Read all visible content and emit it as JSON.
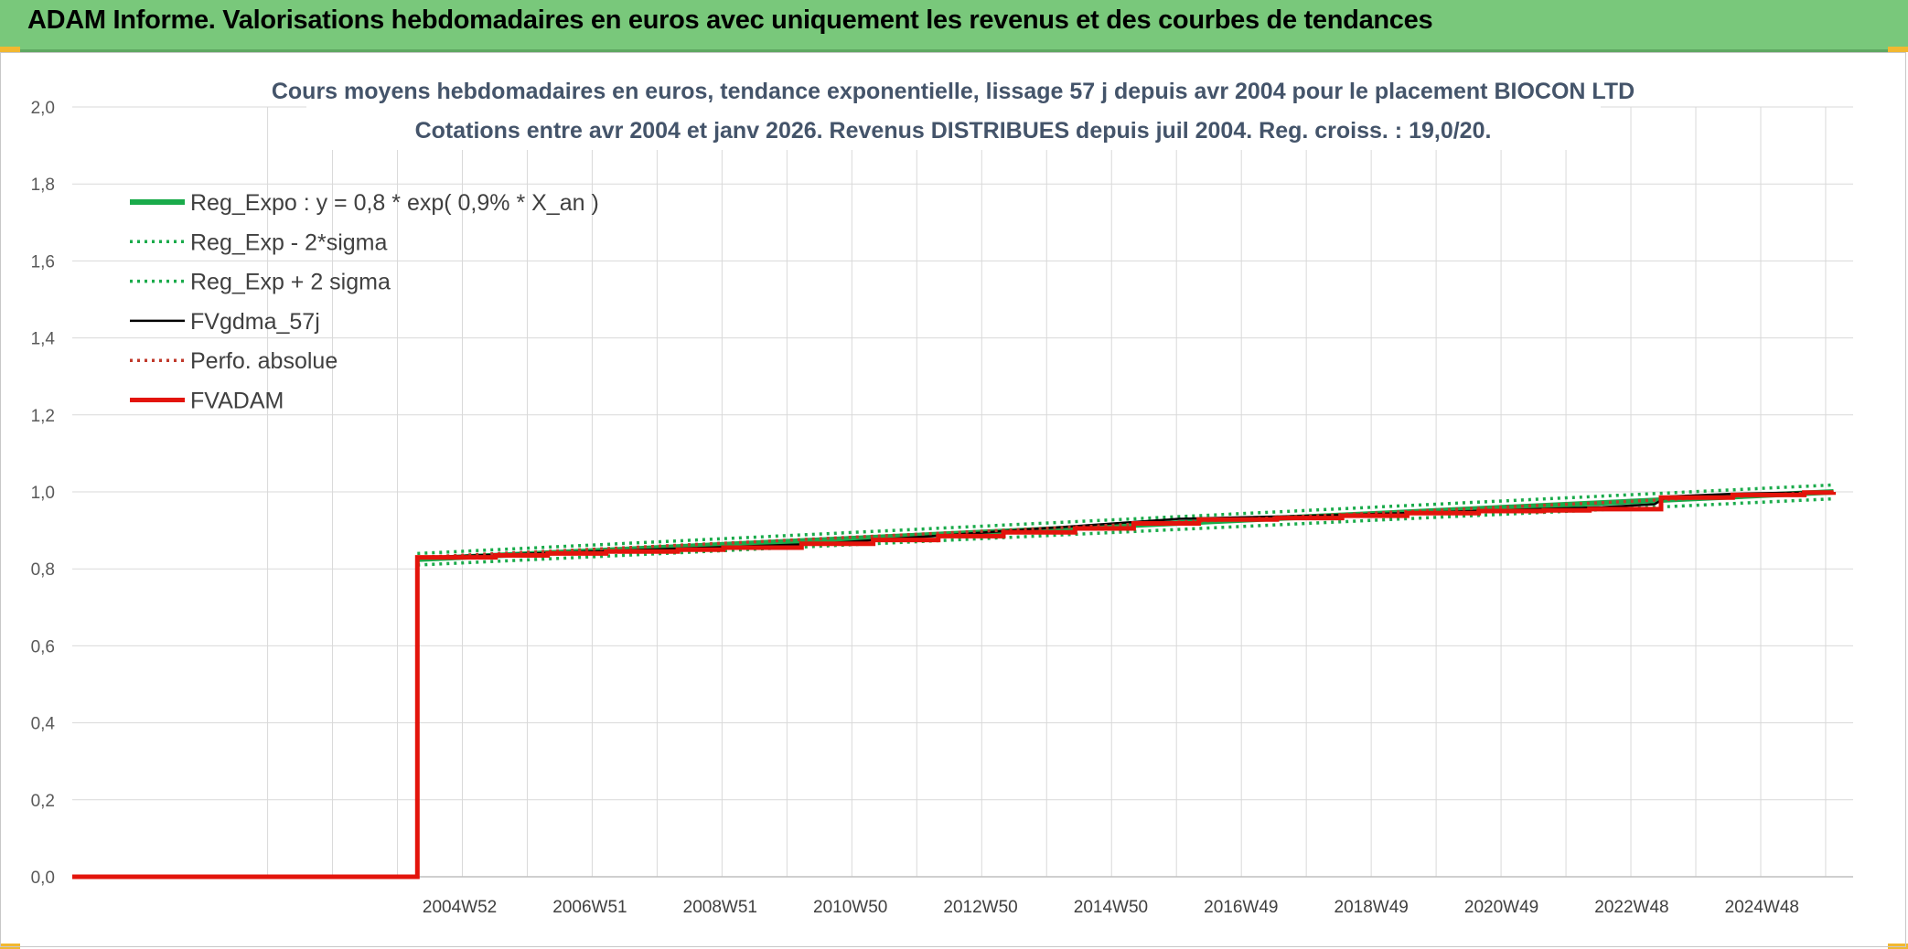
{
  "header": {
    "title": "ADAM Informe. Valorisations hebdomadaires en euros avec uniquement les revenus et des courbes de tendances"
  },
  "colors": {
    "banner": "#79c87b",
    "reg": "#1aab4b",
    "fvadam": "#e3140b",
    "fvgdma": "#000000",
    "perfo": "#c0392b",
    "grid": "#d9d9d9"
  },
  "chart_data": {
    "type": "line",
    "title": "Cours moyens hebdomadaires en euros, tendance exponentielle, lissage 57 j depuis avr 2004 pour le placement BIOCON LTD",
    "subtitle": "Cotations entre avr 2004 et janv 2026. Revenus DISTRIBUES depuis juil 2004. Reg. croiss. : 19,0/20.",
    "ylim": [
      0,
      2
    ],
    "ytick_labels": [
      "0,0",
      "0,2",
      "0,4",
      "0,6",
      "0,8",
      "1,0",
      "1,2",
      "1,4",
      "1,6",
      "1,8",
      "2,0"
    ],
    "xtick_labels": [
      "2004W52",
      "2006W51",
      "2008W51",
      "2010W50",
      "2012W50",
      "2014W50",
      "2016W49",
      "2018W49",
      "2020W49",
      "2022W48",
      "2024W48"
    ],
    "grid": true,
    "legend_position": "top-left",
    "series": [
      {
        "name": "Reg_Expo : y = 0,8 * exp( 0,9% *  X_an )",
        "style": "solid-thick",
        "color": "#1aab4b",
        "x": [
          2004.3,
          2026.05
        ],
        "y": [
          0.825,
          1.0
        ]
      },
      {
        "name": "Reg_Exp - 2*sigma",
        "style": "dotted",
        "color": "#1aab4b",
        "x": [
          2004.3,
          2026.05
        ],
        "y": [
          0.81,
          0.982
        ]
      },
      {
        "name": "Reg_Exp + 2 sigma",
        "style": "dotted",
        "color": "#1aab4b",
        "x": [
          2004.3,
          2026.05
        ],
        "y": [
          0.84,
          1.018
        ]
      },
      {
        "name": "FVgdma_57j",
        "style": "solid",
        "color": "#000000",
        "x": [
          2004.3,
          2010.5,
          2014.5,
          2016.0,
          2018.5,
          2020.5,
          2022.5,
          2023.3,
          2023.5,
          2024.5,
          2026.05
        ],
        "y": [
          0.83,
          0.865,
          0.912,
          0.93,
          0.94,
          0.95,
          0.96,
          0.968,
          0.988,
          0.995,
          1.0
        ]
      },
      {
        "name": "Perfo. absolue",
        "style": "dotted",
        "color": "#c0392b",
        "x": [
          2004.3,
          2026.05
        ],
        "y": [
          0.83,
          1.0
        ]
      },
      {
        "name": "FVADAM",
        "style": "step-thick",
        "color": "#e3140b",
        "x": [
          1999.0,
          2004.3,
          2005.5,
          2006.3,
          2007.2,
          2008.3,
          2009.0,
          2010.2,
          2011.3,
          2012.3,
          2013.3,
          2014.4,
          2015.3,
          2016.3,
          2017.5,
          2018.5,
          2019.5,
          2020.6,
          2021.6,
          2022.3,
          2023.4,
          2024.5,
          2025.6,
          2026.05
        ],
        "y": [
          0.0,
          0.83,
          0.835,
          0.84,
          0.845,
          0.85,
          0.855,
          0.865,
          0.875,
          0.885,
          0.895,
          0.905,
          0.918,
          0.928,
          0.932,
          0.938,
          0.945,
          0.95,
          0.952,
          0.955,
          0.985,
          0.992,
          0.998,
          1.0
        ]
      }
    ]
  }
}
